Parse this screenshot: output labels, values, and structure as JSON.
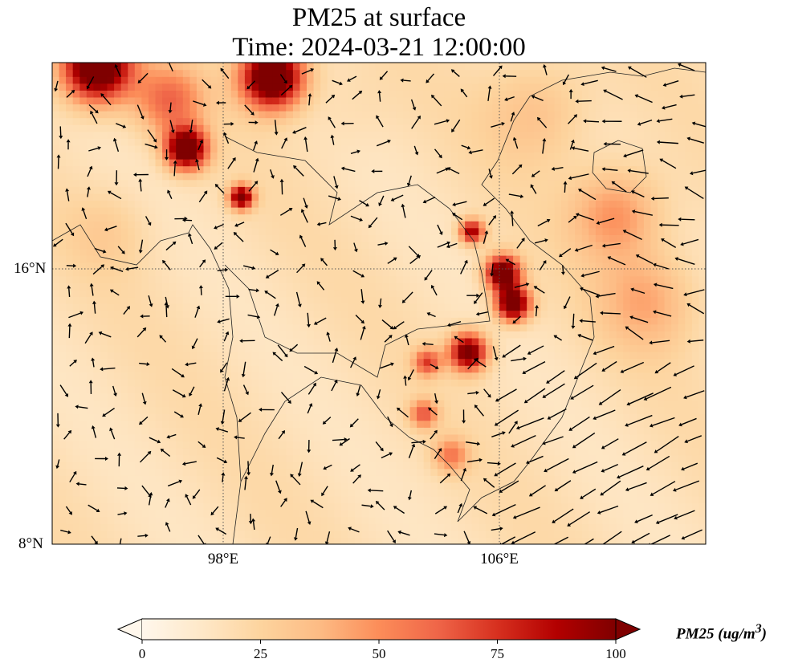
{
  "title": {
    "line1": "PM25 at surface",
    "line2": "Time: 2024-03-21 12:00:00"
  },
  "axes": {
    "lon_range": [
      93,
      112
    ],
    "lat_range": [
      8,
      22
    ],
    "lon_ticks": [
      {
        "value": 98,
        "label": "98°E"
      },
      {
        "value": 106,
        "label": "106°E"
      }
    ],
    "lat_ticks": [
      {
        "value": 16,
        "label": "16°N"
      },
      {
        "value": 8,
        "label": "8°N"
      }
    ]
  },
  "colorbar": {
    "label": "PM25 (ug/m",
    "label_sup": "3",
    "label_end": ")",
    "min": 0,
    "max": 100,
    "extend": "both",
    "ticks": [
      "0",
      "25",
      "50",
      "75",
      "100"
    ],
    "colormap": [
      "#fff7ec",
      "#fee8c8",
      "#fdd49e",
      "#fdbb84",
      "#fc8d59",
      "#ef6548",
      "#d7301f",
      "#b30000",
      "#7f0000"
    ]
  },
  "chart_data": {
    "type": "heatmap",
    "variable": "PM25",
    "units": "ug/m3",
    "background_value": 18,
    "hotspots": [
      {
        "lon": 94.2,
        "lat": 21.8,
        "value": 130,
        "spread": 1.0
      },
      {
        "lon": 99.3,
        "lat": 21.5,
        "value": 130,
        "spread": 0.9
      },
      {
        "lon": 96.8,
        "lat": 19.4,
        "value": 120,
        "spread": 0.6
      },
      {
        "lon": 98.4,
        "lat": 18.0,
        "value": 110,
        "spread": 0.35
      },
      {
        "lon": 96.3,
        "lat": 20.8,
        "value": 60,
        "spread": 1.0
      },
      {
        "lon": 105.1,
        "lat": 17.0,
        "value": 95,
        "spread": 0.35
      },
      {
        "lon": 106.0,
        "lat": 15.8,
        "value": 120,
        "spread": 0.5
      },
      {
        "lon": 106.3,
        "lat": 14.9,
        "value": 120,
        "spread": 0.5
      },
      {
        "lon": 105.0,
        "lat": 13.5,
        "value": 110,
        "spread": 0.55
      },
      {
        "lon": 103.8,
        "lat": 13.2,
        "value": 70,
        "spread": 0.4
      },
      {
        "lon": 103.7,
        "lat": 11.7,
        "value": 65,
        "spread": 0.4
      },
      {
        "lon": 104.5,
        "lat": 10.5,
        "value": 55,
        "spread": 0.5
      },
      {
        "lon": 109.3,
        "lat": 17.5,
        "value": 50,
        "spread": 1.3
      },
      {
        "lon": 110.2,
        "lat": 15.0,
        "value": 42,
        "spread": 1.4
      },
      {
        "lon": 107.0,
        "lat": 20.5,
        "value": 35,
        "spread": 1.5
      },
      {
        "lon": 94.5,
        "lat": 17.0,
        "value": 28,
        "spread": 1.2
      },
      {
        "lon": 101.5,
        "lat": 20.5,
        "value": 22,
        "spread": 1.2
      }
    ],
    "wind_field": "quiver arrows, light winds over land, stronger north-easterly flow over South China Sea"
  }
}
